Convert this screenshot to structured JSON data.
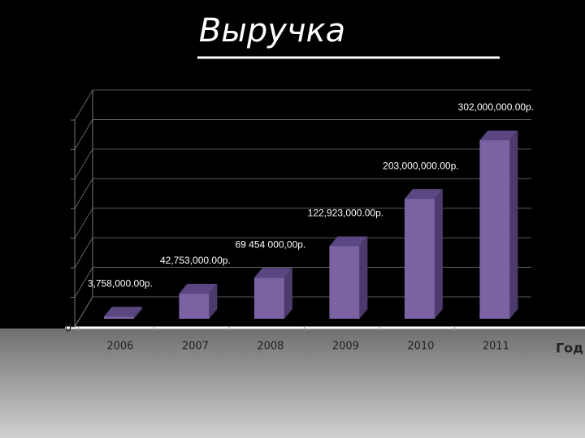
{
  "chart_data": {
    "type": "bar3d",
    "title": "Выручка",
    "x_label": "Год",
    "categories": [
      "2006",
      "2007",
      "2008",
      "2009",
      "2010",
      "2011"
    ],
    "values": [
      3758000,
      42753000,
      69454000,
      122923000,
      203000000,
      302000000
    ],
    "value_labels": [
      "3,758,000.00р.",
      "42,753,000.00р.",
      "69 454 000,00р.",
      "122,923,000.00р.",
      "203,000,000.00р.",
      "302,000,000.00р."
    ],
    "color": "#7b62a3",
    "ylim": [
      0,
      350000000
    ],
    "yticks": [
      0,
      50000000,
      100000000,
      150000000,
      200000000,
      250000000,
      300000000,
      350000000
    ],
    "ytick_label_count": 1,
    "grid": true
  }
}
